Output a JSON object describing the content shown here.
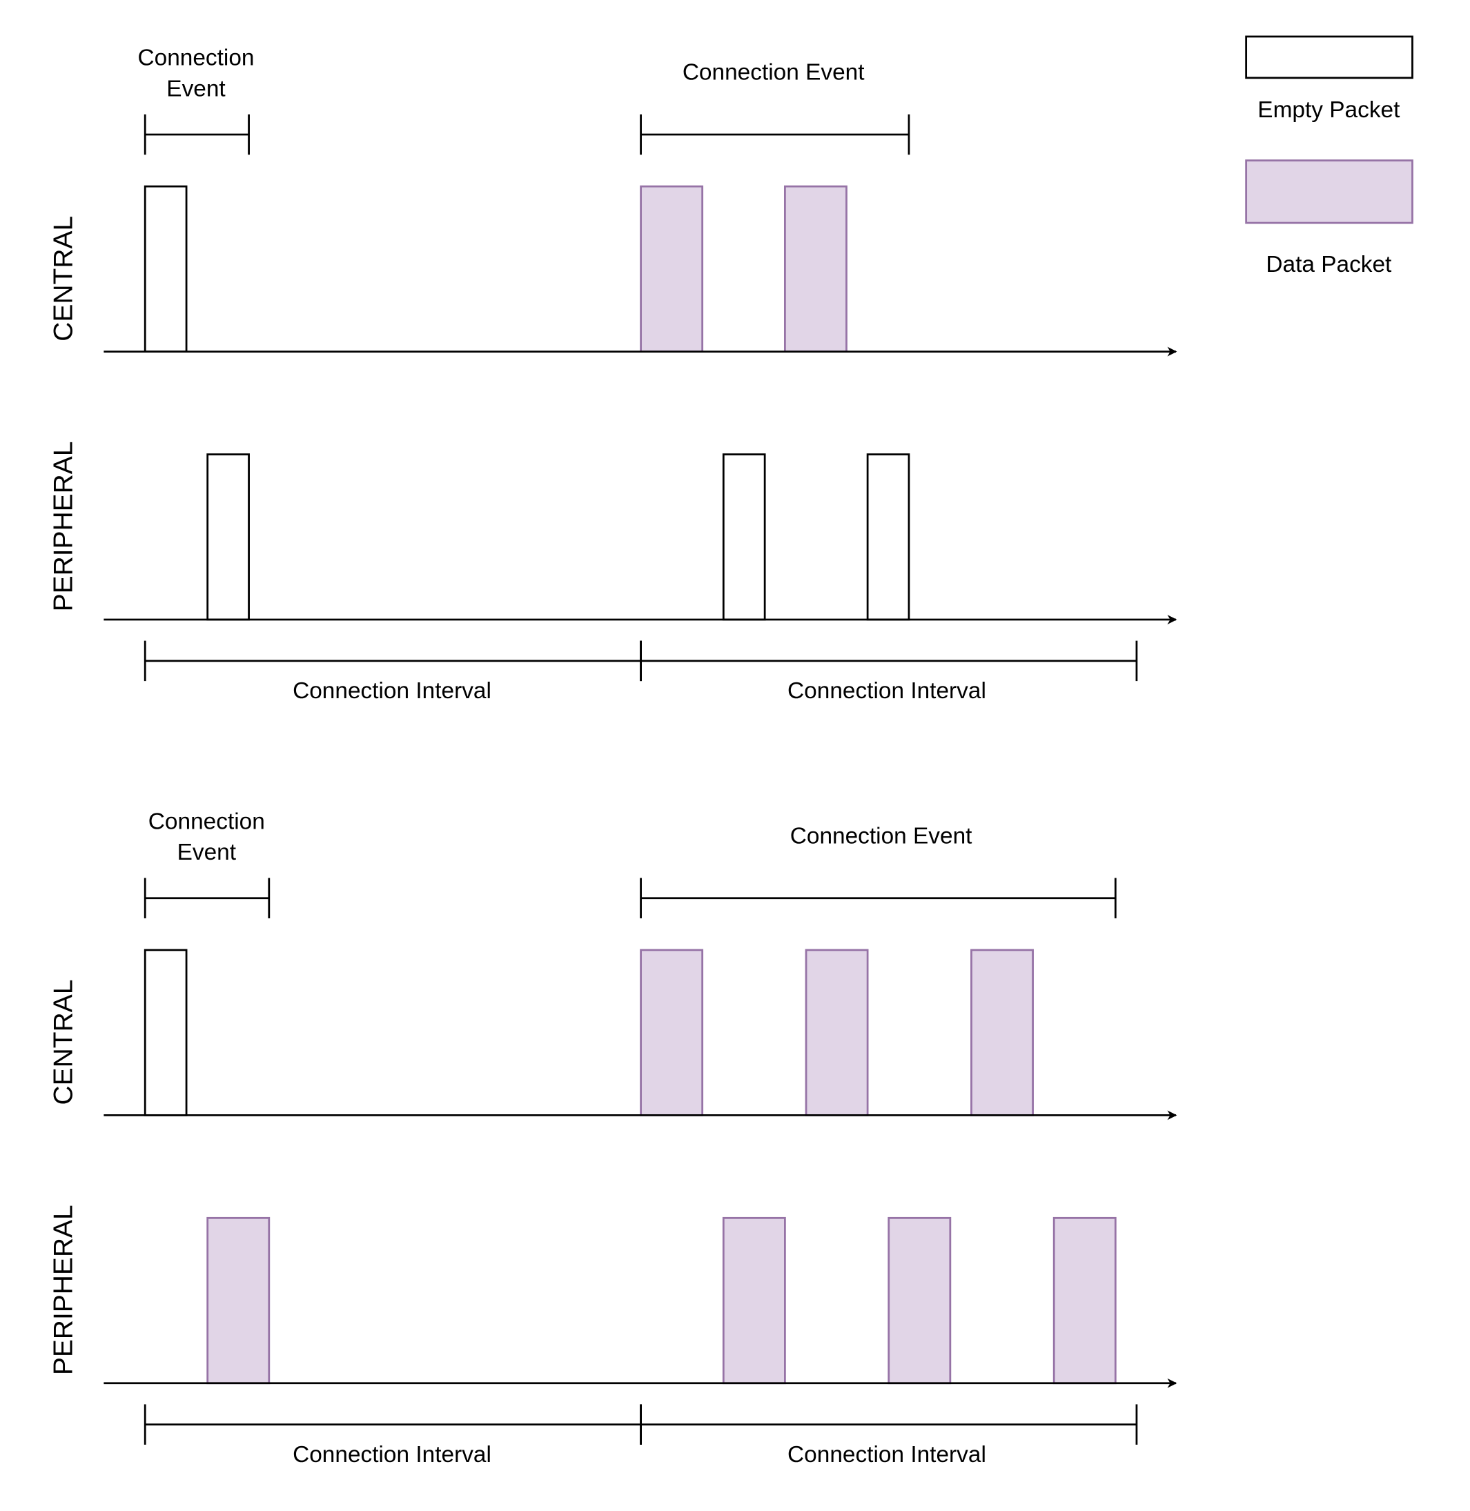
{
  "legend": {
    "empty_label": "Empty Packet",
    "data_label": "Data Packet"
  },
  "colors": {
    "data_fill": "#e1d5e7",
    "data_stroke": "#9673a6",
    "empty_fill": "#ffffff",
    "line": "#000000"
  },
  "diagrams": [
    {
      "central_label": "CENTRAL",
      "peripheral_label": "PERIPHERAL",
      "event1_label": [
        "Connection",
        "Event"
      ],
      "event2_label": "Connection Event",
      "interval1_label": "Connection Interval",
      "interval2_label": "Connection Interval",
      "central_packets": [
        "empty",
        "data",
        "data"
      ],
      "peripheral_packets": [
        "empty",
        "empty",
        "empty"
      ]
    },
    {
      "central_label": "CENTRAL",
      "peripheral_label": "PERIPHERAL",
      "event1_label": [
        "Connection",
        "Event"
      ],
      "event2_label": "Connection Event",
      "interval1_label": "Connection Interval",
      "interval2_label": "Connection Interval",
      "central_packets": [
        "empty",
        "data",
        "data",
        "data"
      ],
      "peripheral_packets": [
        "data",
        "data",
        "data",
        "data"
      ]
    }
  ]
}
